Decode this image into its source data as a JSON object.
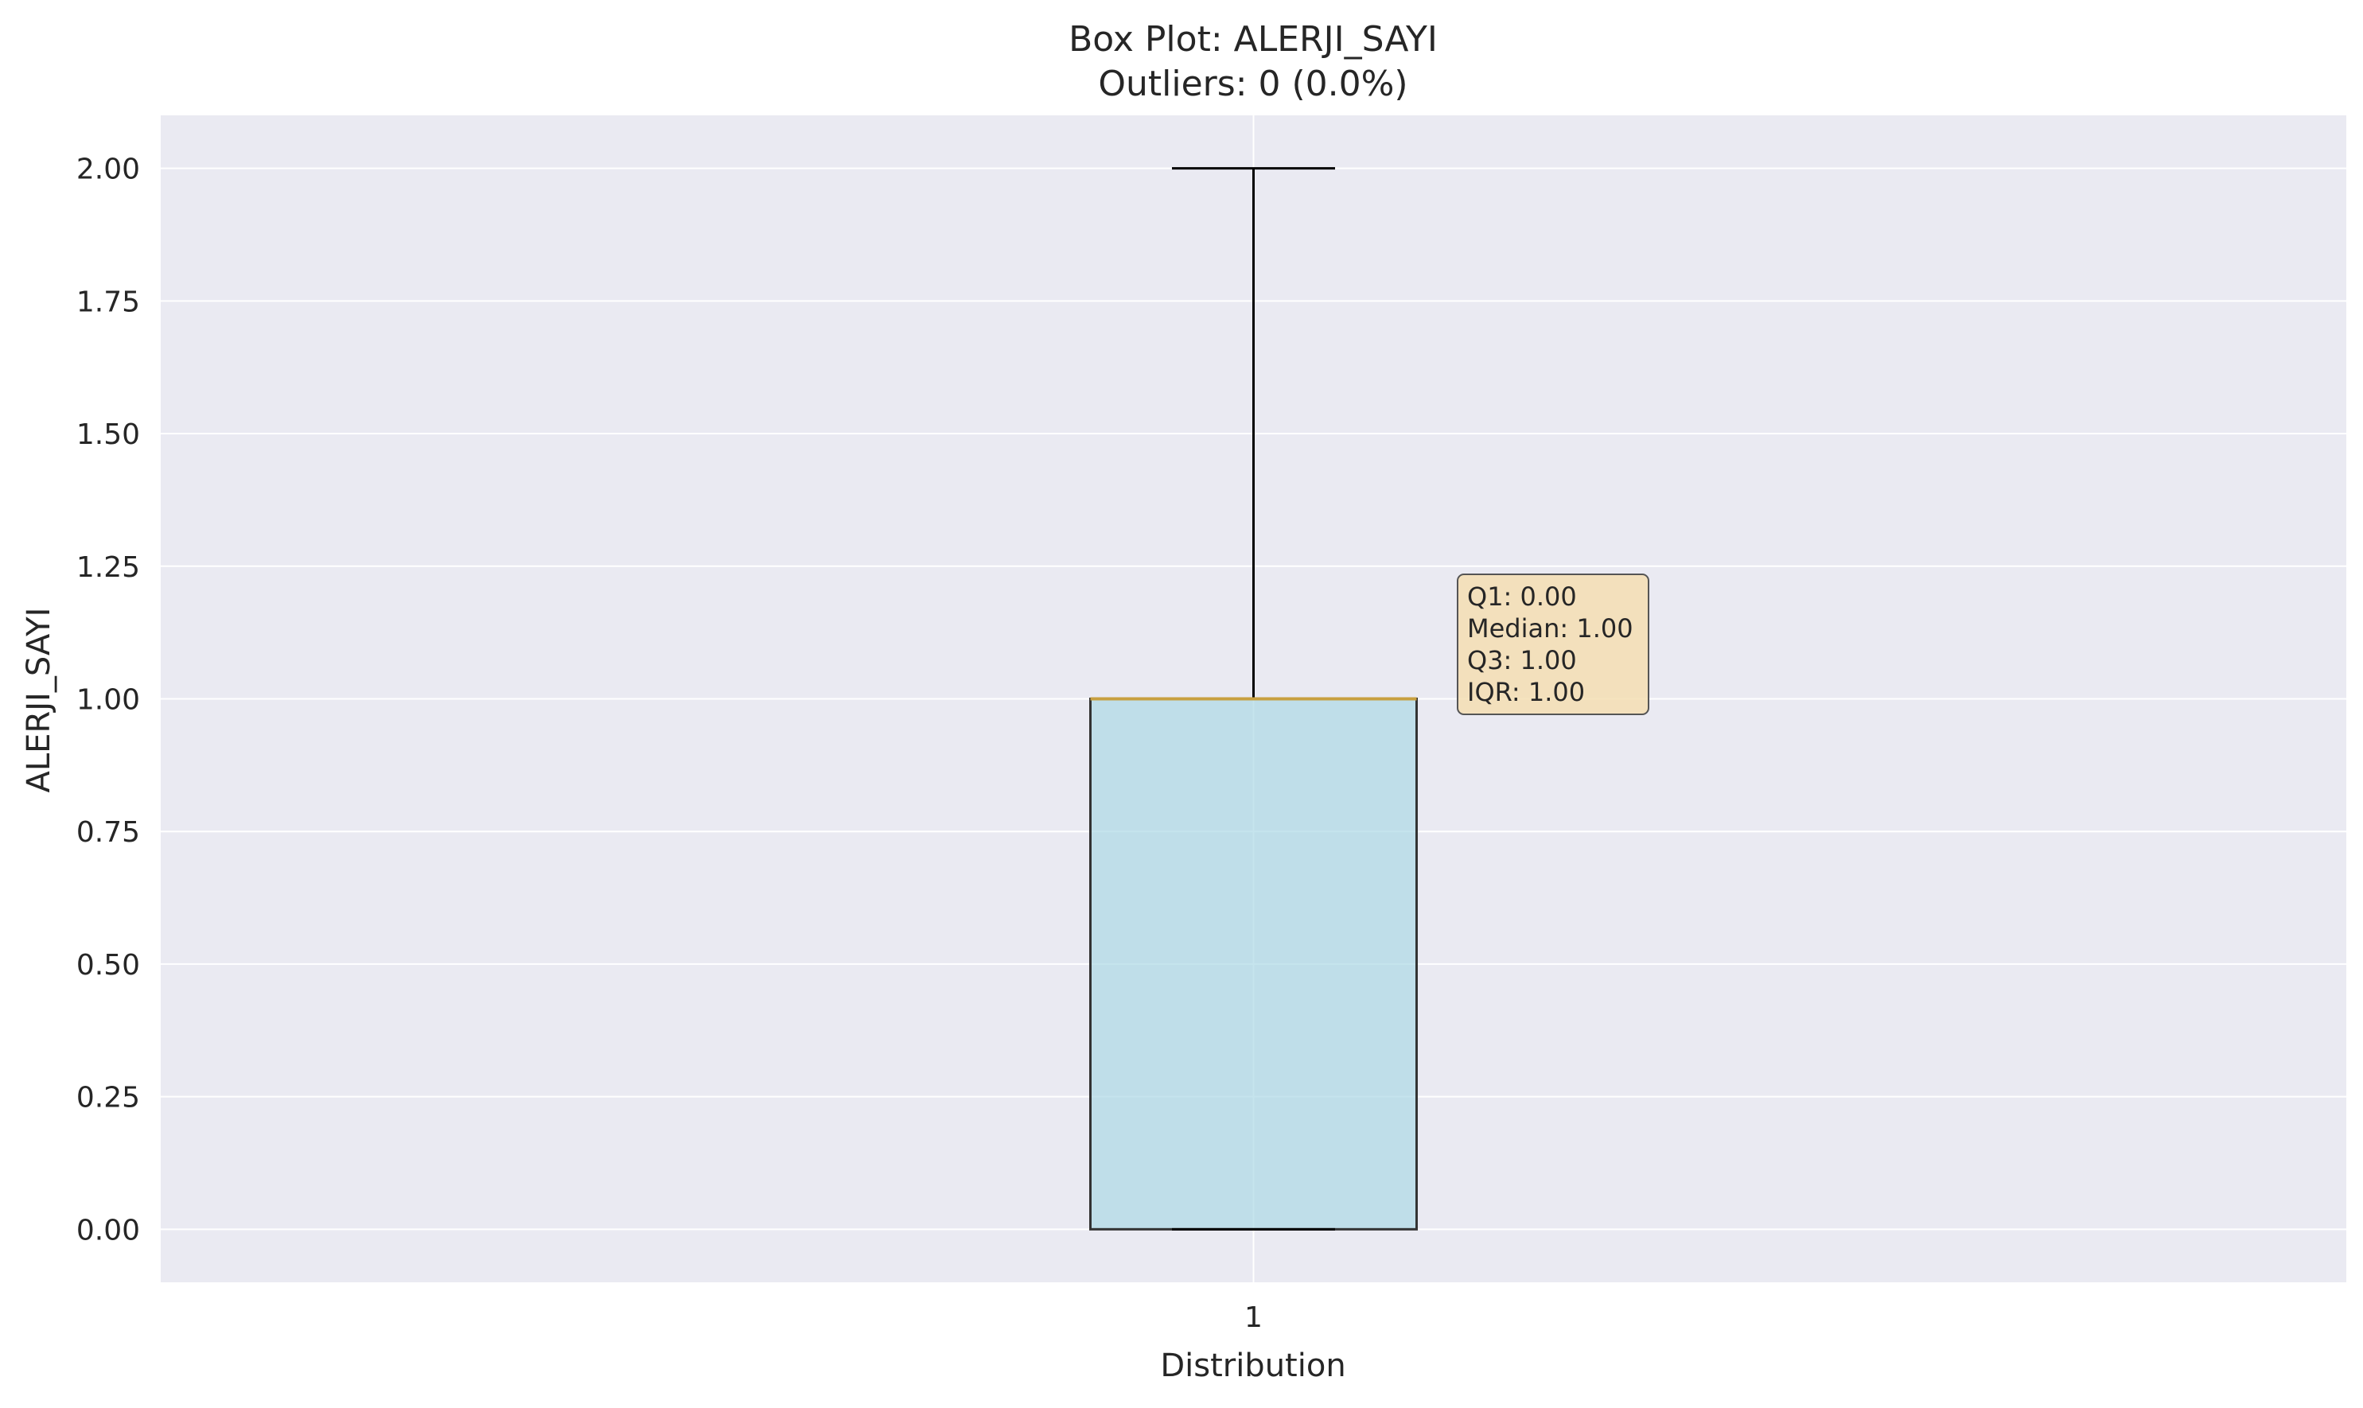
{
  "chart_data": {
    "type": "box",
    "title": "Box Plot: ALERJI_SAYI",
    "subtitle": "Outliers: 0 (0.0%)",
    "xlabel": "Distribution",
    "ylabel": "ALERJI_SAYI",
    "categories": [
      "1"
    ],
    "ylim": [
      -0.1,
      2.1
    ],
    "yticks": [
      {
        "value": 0.0,
        "label": "0.00"
      },
      {
        "value": 0.25,
        "label": "0.25"
      },
      {
        "value": 0.5,
        "label": "0.50"
      },
      {
        "value": 0.75,
        "label": "0.75"
      },
      {
        "value": 1.0,
        "label": "1.00"
      },
      {
        "value": 1.25,
        "label": "1.25"
      },
      {
        "value": 1.5,
        "label": "1.50"
      },
      {
        "value": 1.75,
        "label": "1.75"
      },
      {
        "value": 2.0,
        "label": "2.00"
      }
    ],
    "boxes": [
      {
        "category": "1",
        "whisker_low": 0.0,
        "q1": 0.0,
        "median": 1.0,
        "q3": 1.0,
        "whisker_high": 2.0,
        "outliers": []
      }
    ],
    "annotation": {
      "lines": [
        "Q1: 0.00",
        "Median: 1.00",
        "Q3: 1.00",
        "IQR: 1.00"
      ]
    },
    "grid": true,
    "colors": {
      "plot_background": "#eaeaf2",
      "grid": "#ffffff",
      "box_fill": "#add8e6",
      "box_edge": "#333333",
      "median_line": "#c8a040",
      "whisker": "#000000",
      "annotation_fill": "#f5deb3",
      "annotation_edge": "#555555"
    }
  }
}
